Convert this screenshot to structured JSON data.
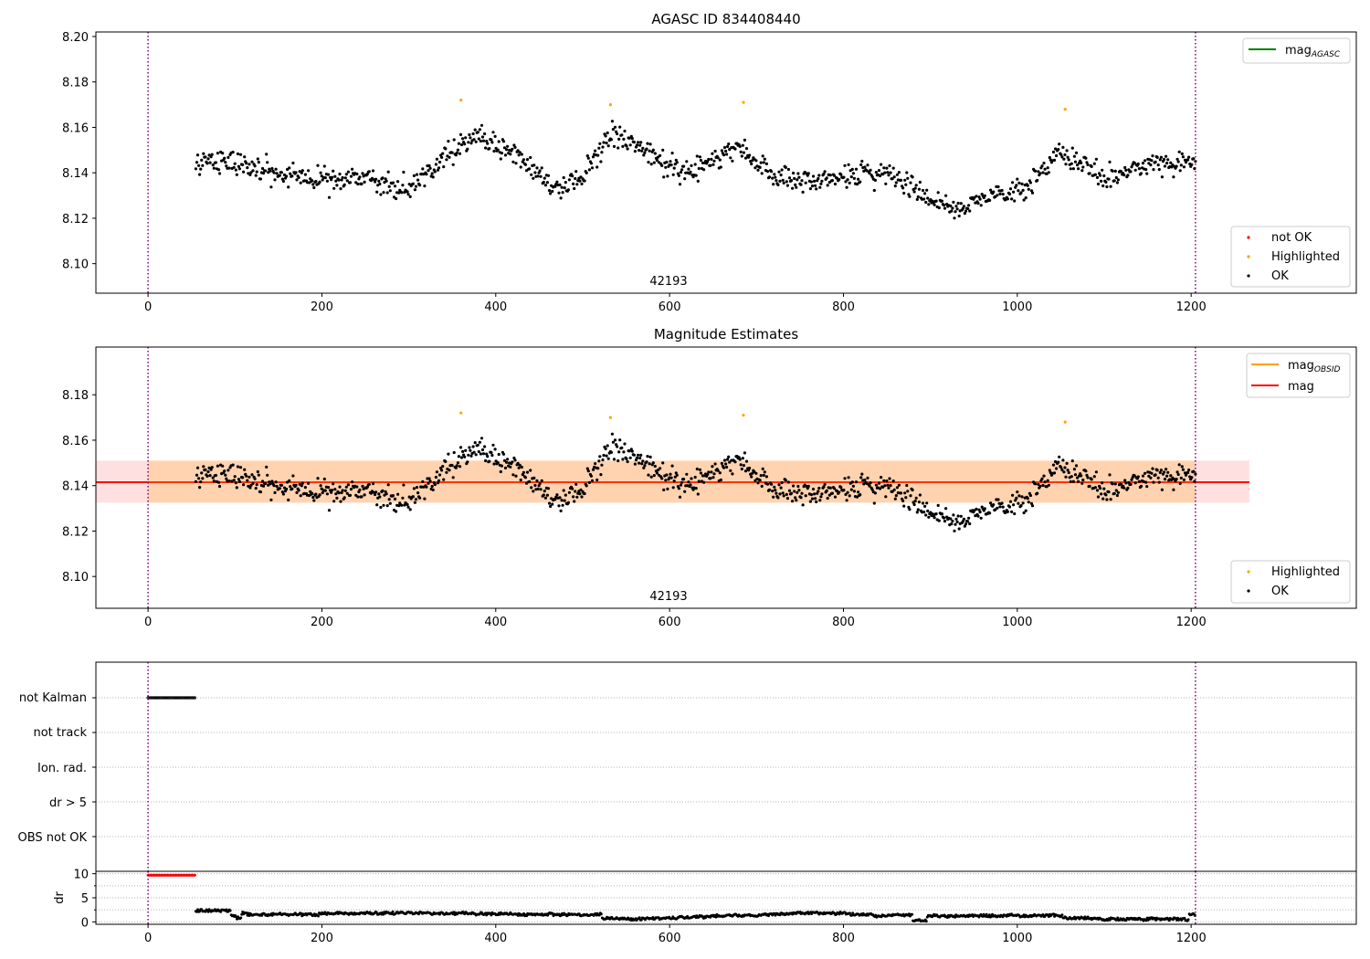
{
  "chart_data": [
    {
      "id": "panel1",
      "type": "scatter",
      "title": "AGASC ID 834408440",
      "obsid_label": "42193",
      "xlim": [
        -60,
        1390
      ],
      "ylim": [
        8.087,
        8.202
      ],
      "xticks": [
        0,
        200,
        400,
        600,
        800,
        1000,
        1200
      ],
      "yticks": [
        8.1,
        8.12,
        8.14,
        8.16,
        8.18,
        8.2
      ],
      "ytick_labels": [
        "8.10",
        "8.12",
        "8.14",
        "8.16",
        "8.18",
        "8.20"
      ],
      "vlines": [
        0,
        1205
      ],
      "legend_top": [
        {
          "label": "mag",
          "sub": "AGASC",
          "color": "#008000"
        }
      ],
      "legend_bottom": [
        {
          "label": "not OK",
          "color": "#ff0000"
        },
        {
          "label": "Highlighted",
          "color": "#ffa500"
        },
        {
          "label": "OK",
          "color": "#000000"
        }
      ],
      "highlighted": [
        {
          "x": 360,
          "y": 8.172
        },
        {
          "x": 532,
          "y": 8.17
        },
        {
          "x": 685,
          "y": 8.171
        },
        {
          "x": 1055,
          "y": 8.168
        }
      ],
      "series_ok": {
        "x_start": 55,
        "x_end": 1205,
        "n": 1050,
        "trend_x": [
          55,
          100,
          150,
          200,
          250,
          300,
          340,
          380,
          420,
          470,
          500,
          535,
          580,
          620,
          680,
          720,
          760,
          800,
          850,
          900,
          935,
          975,
          1010,
          1050,
          1100,
          1150,
          1205
        ],
        "trend_y": [
          8.146,
          8.144,
          8.139,
          8.137,
          8.137,
          8.132,
          8.147,
          8.156,
          8.148,
          8.133,
          8.138,
          8.158,
          8.147,
          8.139,
          8.152,
          8.138,
          8.136,
          8.138,
          8.14,
          8.129,
          8.123,
          8.131,
          8.133,
          8.15,
          8.137,
          8.143,
          8.145
        ]
      }
    },
    {
      "id": "panel2",
      "type": "scatter",
      "title": "Magnitude Estimates",
      "obsid_label": "42193",
      "xlim": [
        -60,
        1390
      ],
      "ylim": [
        8.086,
        8.201
      ],
      "xticks": [
        0,
        200,
        400,
        600,
        800,
        1000,
        1200
      ],
      "yticks": [
        8.1,
        8.12,
        8.14,
        8.16,
        8.18
      ],
      "ytick_labels": [
        "8.10",
        "8.12",
        "8.14",
        "8.16",
        "8.18"
      ],
      "vlines": [
        0,
        1205
      ],
      "mag": 8.1415,
      "band_outer": [
        8.1325,
        8.151
      ],
      "band_outer_x": [
        -60,
        1267
      ],
      "band_inner": [
        8.1325,
        8.151
      ],
      "band_inner_x": [
        0,
        1205
      ],
      "legend_top": [
        {
          "label": "mag",
          "sub": "OBSID",
          "color": "#ffa500"
        },
        {
          "label": "mag",
          "sub": "",
          "color": "#ff0000"
        }
      ],
      "legend_bottom": [
        {
          "label": "Highlighted",
          "color": "#ffa500"
        },
        {
          "label": "OK",
          "color": "#000000"
        }
      ]
    },
    {
      "id": "panel3",
      "type": "scatter",
      "xlim": [
        -60,
        1390
      ],
      "flags": [
        "not Kalman",
        "not track",
        "Ion. rad.",
        "dr > 5",
        "OBS not OK"
      ],
      "not_kalman_range": [
        0,
        55
      ],
      "vlines": [
        0,
        1205
      ]
    },
    {
      "id": "panel4",
      "type": "scatter",
      "ylabel": "dr",
      "xlim": [
        -60,
        1390
      ],
      "ylim": [
        -0.5,
        10.5
      ],
      "xticks": [
        0,
        200,
        400,
        600,
        800,
        1000,
        1200
      ],
      "yticks": [
        0,
        5,
        10
      ],
      "ytick_labels": [
        "0",
        "5",
        "10"
      ],
      "minor_yticks": [
        2.5,
        7.5
      ],
      "clipped_range": [
        0,
        55
      ],
      "clipped_value": 9.7,
      "vlines": [
        0,
        1205
      ]
    }
  ]
}
